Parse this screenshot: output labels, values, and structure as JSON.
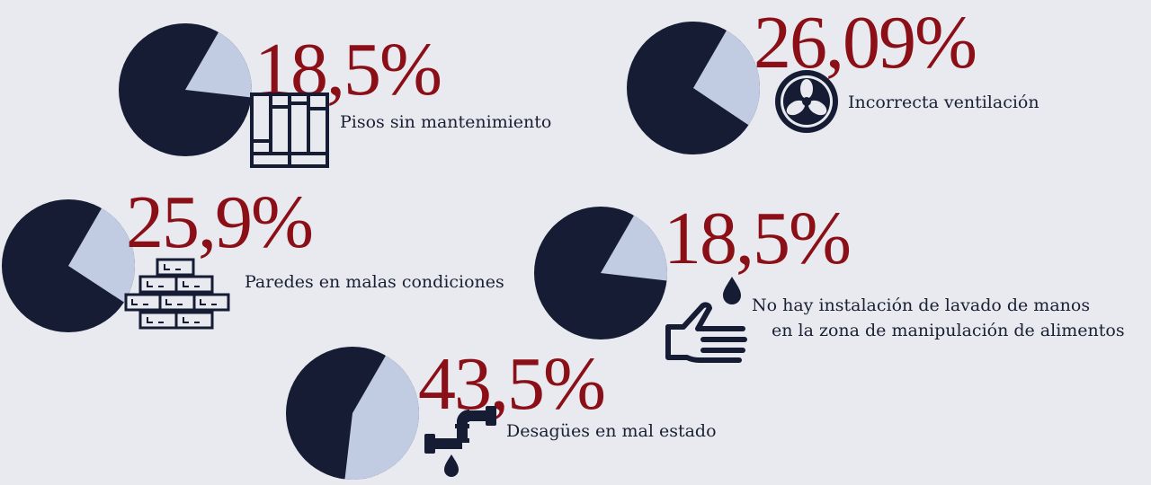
{
  "chart_data": {
    "type": "pie",
    "colors": {
      "slice": "#c1cbe2",
      "rest": "#151c33",
      "value_text": "#8b0f17",
      "label_text": "#1a2033",
      "background": "#e8eaf0"
    },
    "items": [
      {
        "value": 18.5,
        "value_label": "18,5%",
        "label": "Pisos sin mantenimiento",
        "icon": "floor-planks-icon"
      },
      {
        "value": 26.09,
        "value_label": "26,09%",
        "label": "Incorrecta ventilación",
        "icon": "fan-icon"
      },
      {
        "value": 25.9,
        "value_label": "25,9%",
        "label": "Paredes en malas condiciones",
        "icon": "brick-wall-icon"
      },
      {
        "value": 18.5,
        "value_label": "18,5%",
        "label_lines": [
          "No hay instalación de lavado de manos",
          "en la zona de manipulación de alimentos"
        ],
        "icon": "hand-washing-icon"
      },
      {
        "value": 43.5,
        "value_label": "43,5%",
        "label": "Desagües en mal estado",
        "icon": "leaking-pipe-icon"
      }
    ]
  }
}
